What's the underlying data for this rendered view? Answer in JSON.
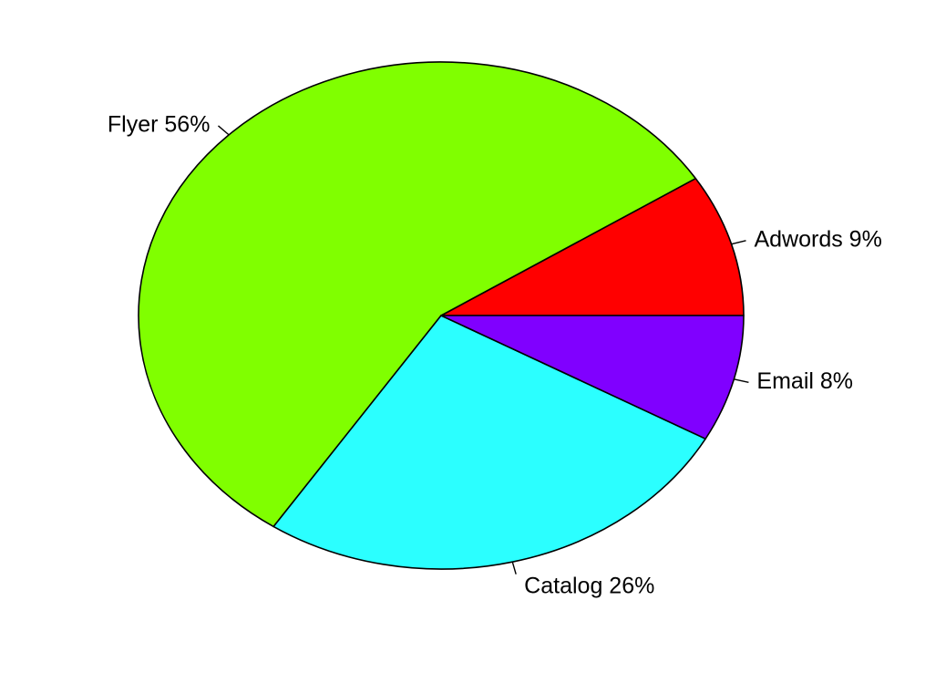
{
  "chart_data": {
    "type": "pie",
    "title": "",
    "direction": "counterclockwise",
    "start_angle_deg": 0,
    "slices": [
      {
        "name": "Adwords",
        "value": 9,
        "label": "Adwords 9%",
        "color": "#FF0000"
      },
      {
        "name": "Flyer",
        "value": 56,
        "label": "Flyer 56%",
        "color": "#80FF00"
      },
      {
        "name": "Catalog",
        "value": 26,
        "label": "Catalog 26%",
        "color": "#2BFFFF"
      },
      {
        "name": "Email",
        "value": 8,
        "label": "Email 8%",
        "color": "#8000FF"
      }
    ]
  }
}
